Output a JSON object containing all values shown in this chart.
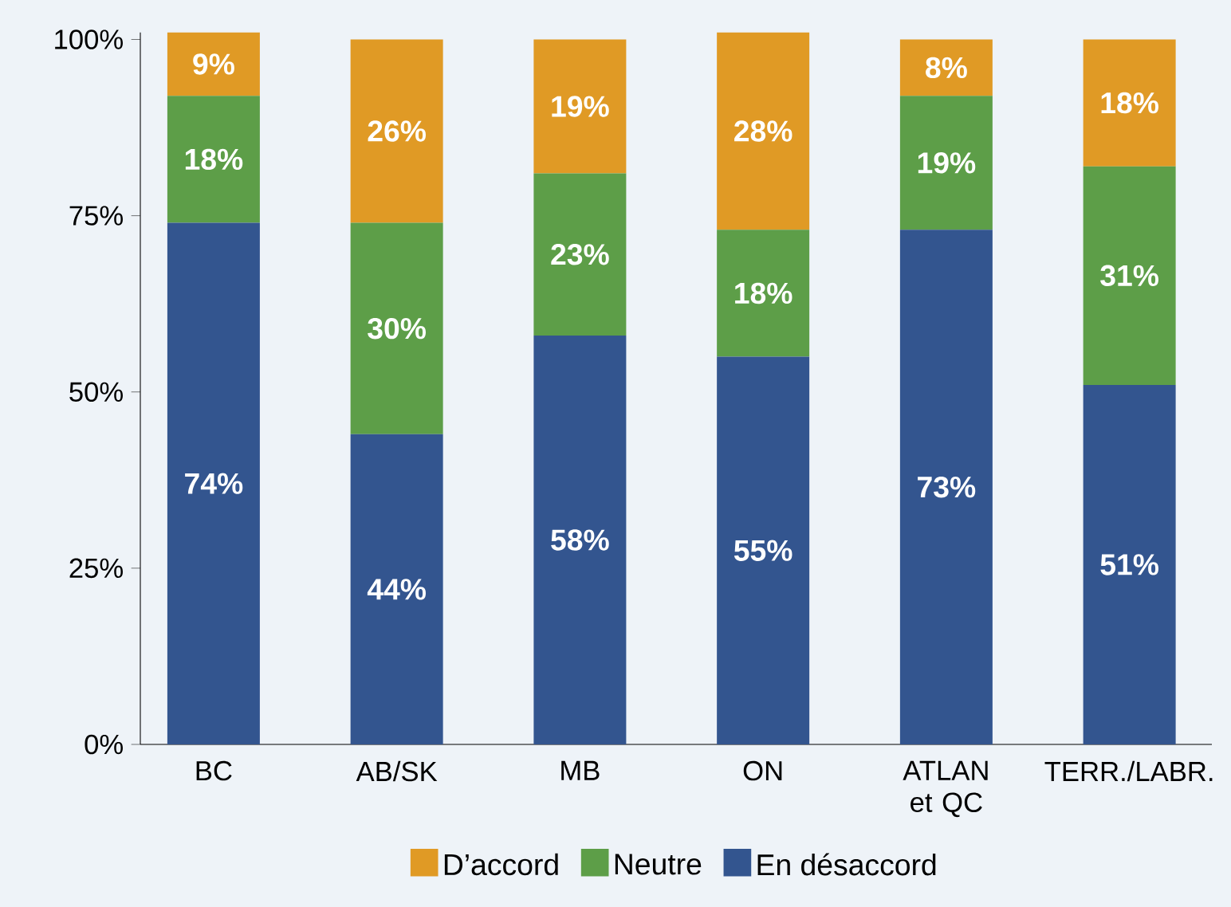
{
  "chart_data": {
    "type": "bar",
    "stacked": true,
    "categories": [
      "BC",
      "AB/SK",
      "MB",
      "ON",
      "ATLAN et QC",
      "TERR./LABR."
    ],
    "series": [
      {
        "name": "En désaccord",
        "color": "#33558f",
        "values": [
          74,
          44,
          58,
          55,
          73,
          51
        ],
        "value_labels": [
          "74%",
          "44%",
          "58%",
          "55%",
          "73%",
          "51%"
        ]
      },
      {
        "name": "Neutre",
        "color": "#5d9e48",
        "values": [
          18,
          30,
          23,
          18,
          19,
          31
        ],
        "value_labels": [
          "18%",
          "30%",
          "23%",
          "18%",
          "19%",
          "31%"
        ]
      },
      {
        "name": "D’accord",
        "color": "#e09a25",
        "values": [
          9,
          26,
          19,
          28,
          8,
          18
        ],
        "value_labels": [
          "9%",
          "26%",
          "19%",
          "28%",
          "8%",
          "18%"
        ]
      }
    ],
    "ylim": [
      0,
      101
    ],
    "yticks": [
      {
        "value": 0,
        "label": "0%"
      },
      {
        "value": 25,
        "label": "25%"
      },
      {
        "value": 50,
        "label": "50%"
      },
      {
        "value": 75,
        "label": "75%"
      },
      {
        "value": 100,
        "label": "100%"
      }
    ],
    "legend": "bottom"
  }
}
